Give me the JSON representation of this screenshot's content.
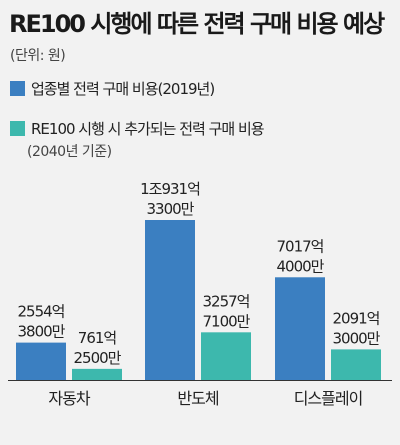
{
  "title": "RE100 시행에 따른 전력 구매 비용 예상",
  "unit": "(단위: 원)",
  "legend_note": "(2040년 기준)",
  "colors": {
    "series_1": "#3b7fc1",
    "series_2": "#3db8ad",
    "axis": "#333333",
    "text": "#222222"
  },
  "chart_data": {
    "type": "bar",
    "categories": [
      "자동차",
      "반도체",
      "디스플레이"
    ],
    "series": [
      {
        "name": "업종별 전력 구매 비용(2019년)",
        "values": [
          255438000000,
          1093133000000,
          701740000000
        ],
        "labels": [
          [
            "2554억",
            "3800만"
          ],
          [
            "1조931억",
            "3300만"
          ],
          [
            "7017억",
            "4000만"
          ]
        ]
      },
      {
        "name": "RE100 시행 시 추가되는 전력 구매 비용",
        "values": [
          76125000000,
          325771000000,
          209130000000
        ],
        "labels": [
          [
            "761억",
            "2500만"
          ],
          [
            "3257억",
            "7100만"
          ],
          [
            "2091억",
            "3000만"
          ]
        ]
      }
    ]
  }
}
